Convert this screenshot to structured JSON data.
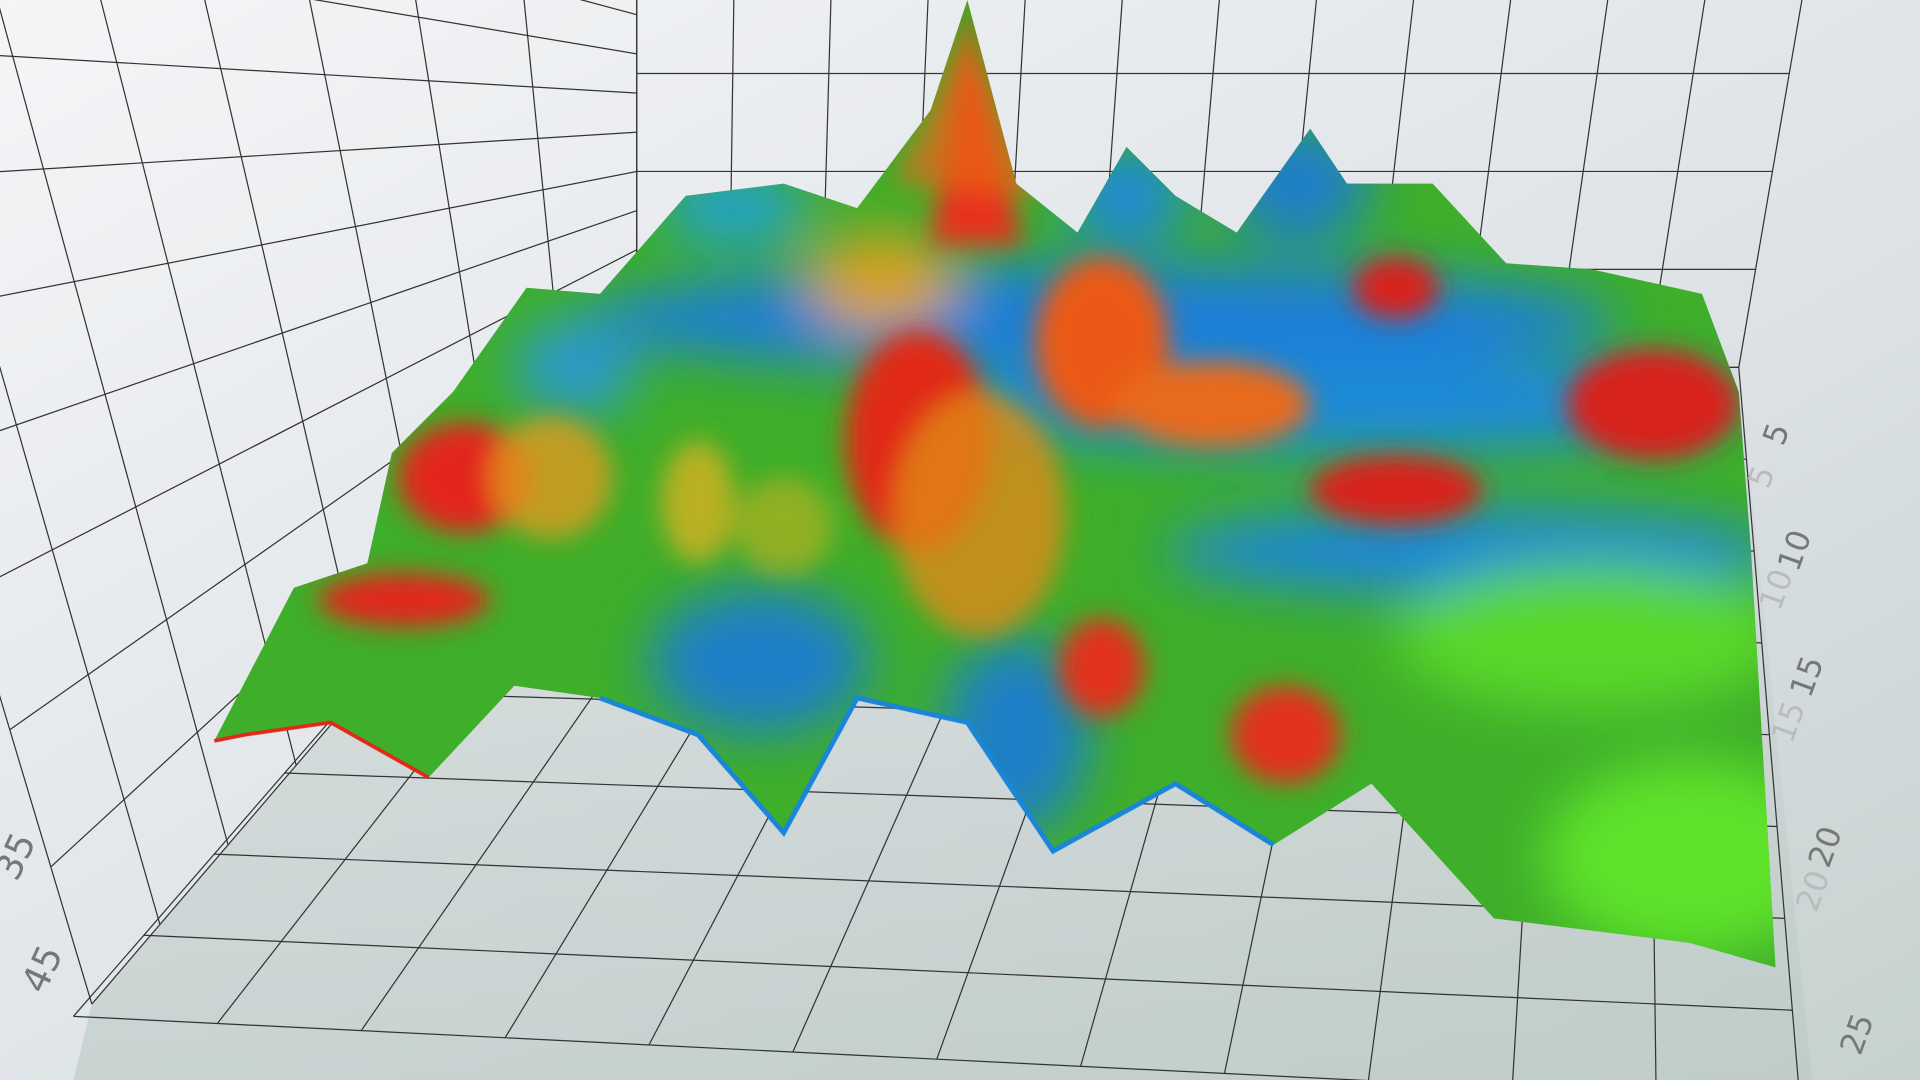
{
  "right_axis": {
    "ticks": [
      "5",
      "10",
      "15",
      "20",
      "25"
    ],
    "reflections": [
      "5",
      "10",
      "15",
      "20"
    ]
  },
  "left_axis": {
    "ticks": [
      "35",
      "45"
    ]
  }
}
